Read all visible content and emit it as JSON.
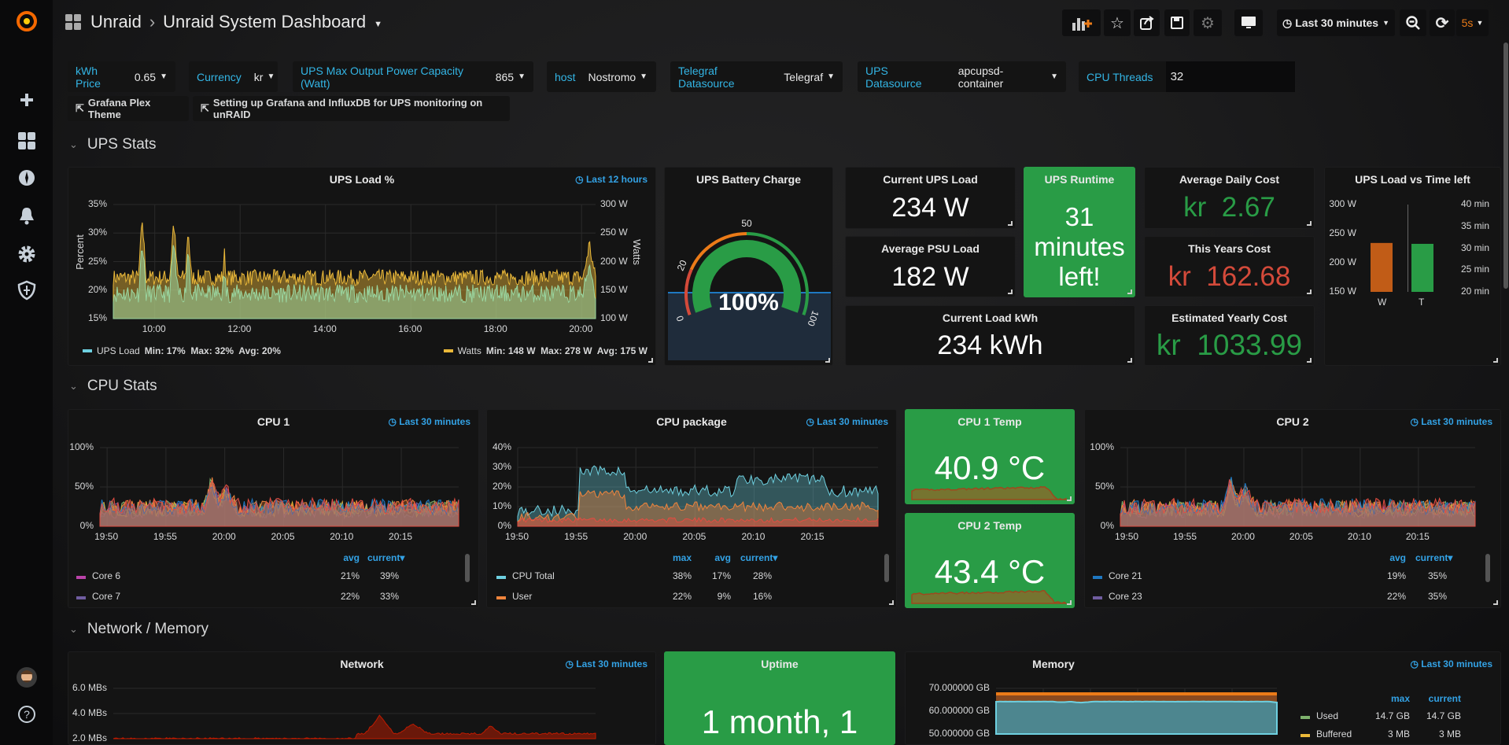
{
  "topbar": {
    "breadcrumb_root": "Unraid",
    "separator": "›",
    "title": "Unraid System Dashboard",
    "time_range": "Last 30 minutes",
    "refresh_interval": "5s",
    "buttons": [
      "add-panel-icon",
      "star-icon",
      "share-icon",
      "save-icon",
      "gear-icon",
      "tv-icon",
      "zoom-out-icon",
      "refresh-icon"
    ]
  },
  "sidebar": {
    "items": [
      "plus-icon",
      "dashboards-icon",
      "explore-compass-icon",
      "bell-icon",
      "gear-icon",
      "shield-icon"
    ],
    "bottom": [
      "avatar",
      "help-icon"
    ]
  },
  "variables": [
    {
      "label": "kWh Price",
      "value": "0.65"
    },
    {
      "label": "Currency",
      "value": "kr"
    },
    {
      "label": "UPS Max Output Power Capacity (Watt)",
      "value": "865"
    },
    {
      "label": "host",
      "value": "Nostromo"
    },
    {
      "label": "Telegraf Datasource",
      "value": "Telegraf"
    },
    {
      "label": "UPS Datasource",
      "value": "apcupsd-container"
    },
    {
      "label": "CPU Threads",
      "value": "32"
    }
  ],
  "links": [
    "Grafana Plex Theme",
    "Setting up Grafana and InfluxDB for UPS monitoring on unRAID"
  ],
  "rows": [
    "UPS Stats",
    "CPU Stats",
    "Network / Memory"
  ],
  "colors": {
    "green": "#299c46",
    "red": "#d44a3a",
    "orange": "#eb7b18",
    "accent": "#33b5e5",
    "yellow": "#eab839"
  },
  "ups_load": {
    "title": "UPS Load %",
    "time": "Last 12 hours",
    "y_left_label": "Percent",
    "y_right_label": "Watts",
    "y_left_ticks": [
      "35%",
      "30%",
      "25%",
      "20%",
      "15%"
    ],
    "y_right_ticks": [
      "300 W",
      "250 W",
      "200 W",
      "150 W",
      "100 W"
    ],
    "x_ticks": [
      "10:00",
      "12:00",
      "14:00",
      "16:00",
      "18:00",
      "20:00"
    ],
    "legend": [
      {
        "name": "UPS Load",
        "color": "#6ed0e0",
        "stats": "Min: 17%  Max: 32%  Avg: 20%"
      },
      {
        "name": "Watts",
        "color": "#eab839",
        "stats": "Min: 148 W  Max: 278 W  Avg: 175 W"
      }
    ]
  },
  "battery": {
    "title": "UPS Battery Charge",
    "value": "100%",
    "value_percent": 100,
    "thresholds": [
      "0",
      "20",
      "50",
      "100"
    ]
  },
  "stats": {
    "current_ups_load": {
      "title": "Current UPS Load",
      "value": "234 W"
    },
    "avg_psu_load": {
      "title": "Average PSU Load",
      "value": "182 W"
    },
    "current_load_kwh": {
      "title": "Current Load kWh",
      "value": "234 kWh"
    },
    "ups_runtime": {
      "title": "UPS Runtime",
      "value": "31 minutes left!"
    },
    "avg_daily_cost": {
      "title": "Average Daily Cost",
      "prefix": "kr",
      "value": "2.67",
      "color": "#299c46"
    },
    "this_years_cost": {
      "title": "This Years Cost",
      "prefix": "kr",
      "value": "162.68",
      "color": "#d44a3a"
    },
    "est_yearly_cost": {
      "title": "Estimated Yearly Cost",
      "prefix": "kr",
      "value": "1033.99",
      "color": "#299c46"
    }
  },
  "load_vs_time": {
    "title": "UPS Load vs Time left",
    "y_left_ticks": [
      "300 W",
      "250 W",
      "200 W",
      "150 W"
    ],
    "y_right_ticks": [
      "40 min",
      "35 min",
      "30 min",
      "25 min",
      "20 min"
    ],
    "bars": [
      {
        "label": "W",
        "value": 234,
        "unit": "W",
        "color": "#c15c17"
      },
      {
        "label": "T",
        "value": 31,
        "unit": "min",
        "color": "#299c46"
      }
    ],
    "left_range": [
      150,
      300
    ],
    "right_range": [
      20,
      40
    ]
  },
  "cpu1": {
    "title": "CPU 1",
    "time": "Last 30 minutes",
    "y_ticks": [
      "100%",
      "50%",
      "0%"
    ],
    "x_ticks": [
      "19:50",
      "19:55",
      "20:00",
      "20:05",
      "20:10",
      "20:15"
    ],
    "legend_headers": [
      "avg",
      "current▾"
    ],
    "legend": [
      {
        "name": "Core 6",
        "color": "#ba43a9",
        "values": [
          "21%",
          "39%"
        ]
      },
      {
        "name": "Core 7",
        "color": "#705da0",
        "values": [
          "22%",
          "33%"
        ]
      }
    ]
  },
  "cpu_package": {
    "title": "CPU package",
    "time": "Last 30 minutes",
    "y_ticks": [
      "40%",
      "30%",
      "20%",
      "10%",
      "0%"
    ],
    "x_ticks": [
      "19:50",
      "19:55",
      "20:00",
      "20:05",
      "20:10",
      "20:15"
    ],
    "legend_headers": [
      "max",
      "avg",
      "current▾"
    ],
    "legend": [
      {
        "name": "CPU Total",
        "color": "#6ed0e0",
        "values": [
          "38%",
          "17%",
          "28%"
        ]
      },
      {
        "name": "User",
        "color": "#ef843c",
        "values": [
          "22%",
          "9%",
          "16%"
        ]
      }
    ]
  },
  "cpu1_temp": {
    "title": "CPU 1 Temp",
    "value": "40.9 °C"
  },
  "cpu2_temp": {
    "title": "CPU 2 Temp",
    "value": "43.4 °C"
  },
  "cpu2": {
    "title": "CPU 2",
    "time": "Last 30 minutes",
    "y_ticks": [
      "100%",
      "50%",
      "0%"
    ],
    "x_ticks": [
      "19:50",
      "19:55",
      "20:00",
      "20:05",
      "20:10",
      "20:15"
    ],
    "legend_headers": [
      "avg",
      "current▾"
    ],
    "legend": [
      {
        "name": "Core 21",
        "color": "#1f78c1",
        "values": [
          "19%",
          "35%"
        ]
      },
      {
        "name": "Core 23",
        "color": "#705da0",
        "values": [
          "22%",
          "35%"
        ]
      }
    ]
  },
  "network": {
    "title": "Network",
    "time": "Last 30 minutes",
    "y_ticks": [
      "6.0 MBs",
      "4.0 MBs",
      "2.0 MBs"
    ]
  },
  "uptime": {
    "title": "Uptime",
    "value": "1 month, 1"
  },
  "memory": {
    "title": "Memory",
    "time": "Last 30 minutes",
    "y_ticks": [
      "70.000000 GB",
      "60.000000 GB",
      "50.000000 GB"
    ],
    "legend_headers": [
      "max",
      "current"
    ],
    "legend": [
      {
        "name": "Used",
        "color": "#7eb26d",
        "values": [
          "14.7 GB",
          "14.7 GB"
        ]
      },
      {
        "name": "Buffered",
        "color": "#eab839",
        "values": [
          "3 MB",
          "3 MB"
        ]
      }
    ]
  }
}
